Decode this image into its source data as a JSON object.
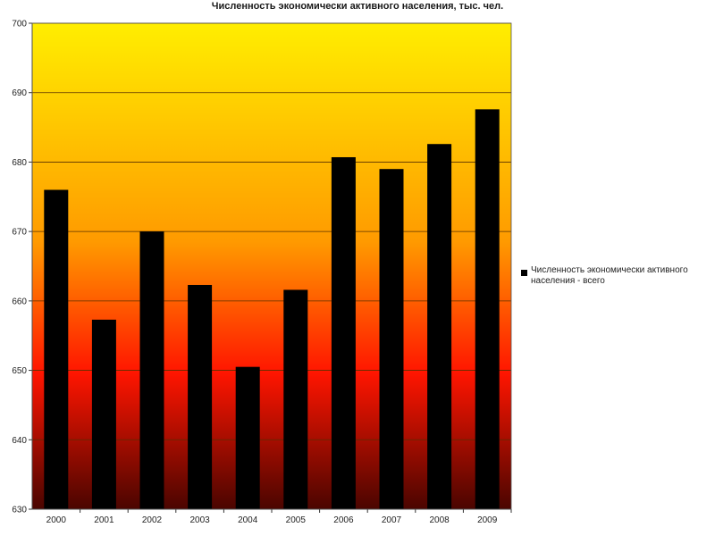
{
  "chart_data": {
    "type": "bar",
    "title": "Численность экономически активного населения, тыс. чел.",
    "xlabel": "",
    "ylabel": "",
    "categories": [
      "2000",
      "2001",
      "2002",
      "2003",
      "2004",
      "2005",
      "2006",
      "2007",
      "2008",
      "2009"
    ],
    "series": [
      {
        "name": "Численность экономически активного населения - всего",
        "values": [
          676.0,
          657.3,
          670.0,
          662.3,
          650.5,
          661.6,
          680.7,
          679.0,
          682.6,
          687.6
        ],
        "color": "#000000"
      }
    ],
    "ylim": [
      630,
      700
    ],
    "yticks": [
      630,
      640,
      650,
      660,
      670,
      680,
      690,
      700
    ],
    "grid": true,
    "legend_position": "right",
    "background_gradient": [
      "#ffee00",
      "#ff9a00",
      "#ff1500",
      "#4a0500"
    ]
  }
}
